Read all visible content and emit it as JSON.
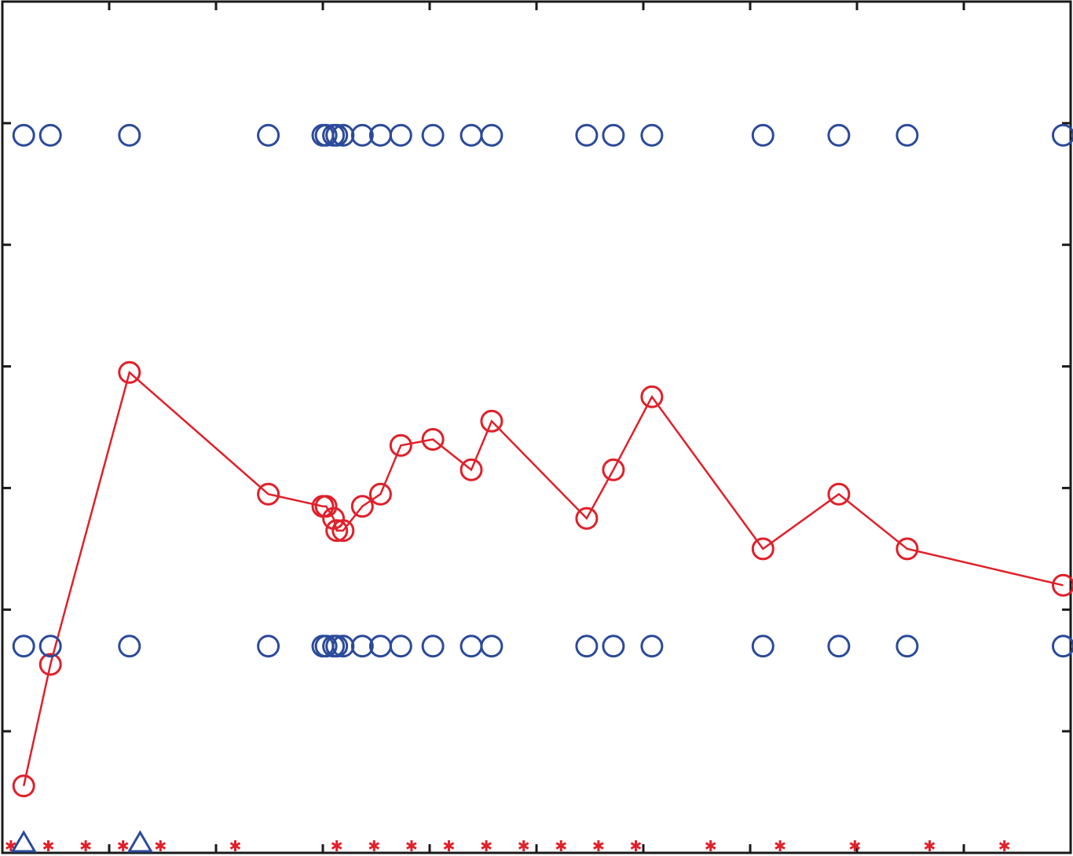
{
  "chart_data": {
    "type": "line",
    "title": "",
    "xlabel": "",
    "ylabel": "",
    "xlim": [
      0,
      1000
    ],
    "ylim": [
      0,
      7
    ],
    "grid": false,
    "colors": {
      "red": "#e0202a",
      "blue": "#2b4a9a",
      "axes": "#1a1a1a"
    },
    "x_ticks": [
      0,
      100,
      200,
      300,
      400,
      500,
      600,
      700,
      800,
      900,
      1000
    ],
    "y_ticks": [
      0,
      1,
      2,
      3,
      4,
      5,
      6,
      7
    ],
    "x": [
      20,
      45,
      119,
      249,
      300,
      303,
      310,
      313,
      319,
      337,
      354,
      373,
      403,
      439,
      458,
      547,
      572,
      608,
      712,
      783,
      847,
      993
    ],
    "series": [
      {
        "marker": "circle",
        "line": true,
        "color": "#e0202a",
        "values": [
          0.55,
          1.55,
          3.95,
          2.95,
          2.85,
          2.85,
          2.75,
          2.65,
          2.65,
          2.85,
          2.95,
          3.35,
          3.4,
          3.15,
          3.55,
          2.75,
          3.15,
          3.75,
          2.5,
          2.95,
          2.5,
          2.2
        ]
      },
      {
        "marker": "circle",
        "line": false,
        "color": "#2b4a9a",
        "values": [
          5.9,
          5.9,
          5.9,
          5.9,
          5.9,
          5.9,
          5.9,
          5.9,
          5.9,
          5.9,
          5.9,
          5.9,
          5.9,
          5.9,
          5.9,
          5.9,
          5.9,
          5.9,
          5.9,
          5.9,
          5.9,
          5.9
        ]
      },
      {
        "marker": "circle",
        "line": false,
        "color": "#2b4a9a",
        "values": [
          1.7,
          1.7,
          1.7,
          1.7,
          1.7,
          1.7,
          1.7,
          1.7,
          1.7,
          1.7,
          1.7,
          1.7,
          1.7,
          1.7,
          1.7,
          1.7,
          1.7,
          1.7,
          1.7,
          1.7,
          1.7,
          1.7
        ]
      },
      {
        "marker": "star",
        "line": false,
        "color": "#e0202a",
        "x": [
          8,
          43,
          78,
          113,
          148,
          218,
          313,
          348,
          383,
          418,
          453,
          488,
          523,
          558,
          593,
          663,
          728,
          798,
          868,
          938,
          1008
        ],
        "values": [
          0,
          0,
          0,
          0,
          0,
          0,
          0,
          0,
          0,
          0,
          0,
          0,
          0,
          0,
          0,
          0,
          0,
          0,
          0,
          0,
          0
        ]
      },
      {
        "marker": "triangle",
        "line": false,
        "color": "#2b4a9a",
        "x": [
          20,
          129
        ],
        "values": [
          0,
          0
        ]
      }
    ]
  }
}
